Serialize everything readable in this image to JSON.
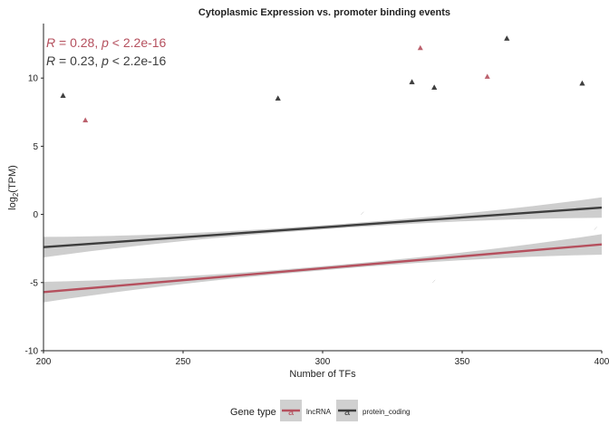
{
  "chart_data": {
    "type": "scatter",
    "title": "Cytoplasmic Expression vs. promoter binding events",
    "xlabel": "Number of TFs",
    "ylabel_main": "log",
    "ylabel_sub": "2",
    "ylabel_tail": "(TPM)",
    "xlim": [
      200,
      400
    ],
    "ylim": [
      -10,
      14
    ],
    "x_ticks": [
      200,
      250,
      300,
      350,
      400
    ],
    "y_ticks": [
      -10,
      -5,
      0,
      5,
      10
    ],
    "grid": false,
    "legend_position": "bottom",
    "legend_title": "Gene type",
    "series": [
      {
        "name": "lncRNA",
        "color": "#b5505e",
        "trend": {
          "x": [
            200,
            400
          ],
          "y": [
            -5.7,
            -2.2
          ]
        },
        "annotation": {
          "r_label": "R",
          "r_text": " = 0.28, ",
          "p_label": "p",
          "p_text": " < 2.2e-16"
        },
        "outliers": [
          {
            "x": 335,
            "y": 12.2
          },
          {
            "x": 359,
            "y": 10.1
          },
          {
            "x": 215,
            "y": 6.9
          }
        ]
      },
      {
        "name": "protein_coding",
        "color": "#3d3d3d",
        "trend": {
          "x": [
            200,
            400
          ],
          "y": [
            -2.4,
            0.5
          ]
        },
        "annotation": {
          "r_label": "R",
          "r_text": " = 0.23, ",
          "p_label": "p",
          "p_text": " < 2.2e-16"
        },
        "outliers": [
          {
            "x": 366,
            "y": 12.9
          },
          {
            "x": 207,
            "y": 8.7
          },
          {
            "x": 332,
            "y": 9.7
          },
          {
            "x": 393,
            "y": 9.6
          },
          {
            "x": 340,
            "y": 9.3
          },
          {
            "x": 284,
            "y": 8.5
          }
        ]
      }
    ]
  }
}
